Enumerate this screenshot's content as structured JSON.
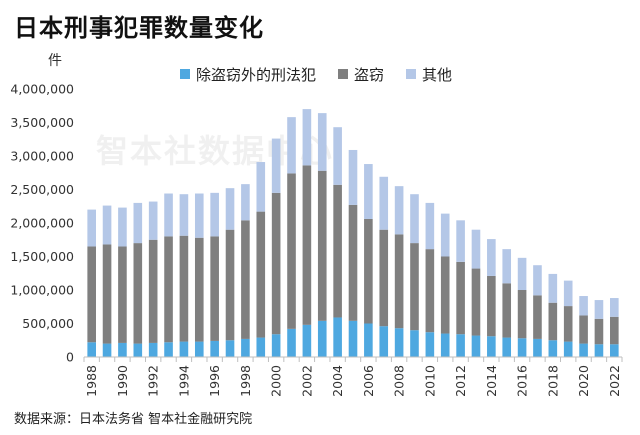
{
  "title": "日本刑事犯罪数量变化",
  "unit": "件",
  "source": "数据来源：日本法务省 智本社金融研究院",
  "watermark": "智本社数据中心",
  "colors": {
    "series1": "#4ea8e0",
    "series2": "#7f7f7f",
    "series3": "#b4c7e7",
    "axis": "#bfbfbf"
  },
  "chart_data": {
    "type": "bar",
    "stacked": true,
    "legend_position": "top",
    "grid": false,
    "x": [
      1988,
      1989,
      1990,
      1991,
      1992,
      1993,
      1994,
      1995,
      1996,
      1997,
      1998,
      1999,
      2000,
      2001,
      2002,
      2003,
      2004,
      2005,
      2006,
      2007,
      2008,
      2009,
      2010,
      2011,
      2012,
      2013,
      2014,
      2015,
      2016,
      2017,
      2018,
      2019,
      2020,
      2021,
      2022
    ],
    "x_tick_labels": [
      "1988",
      "1990",
      "1992",
      "1994",
      "1996",
      "1998",
      "2000",
      "2002",
      "2004",
      "2006",
      "2008",
      "2010",
      "2012",
      "2014",
      "2016",
      "2018",
      "2020",
      "2022"
    ],
    "ylim": [
      0,
      4000000
    ],
    "y_ticks": [
      "0",
      "500,000",
      "1,000,000",
      "1,500,000",
      "2,000,000",
      "2,500,000",
      "3,000,000",
      "3,500,000",
      "4,000,000"
    ],
    "series": [
      {
        "name": "除盗窃外的刑法犯",
        "values": [
          220000,
          200000,
          210000,
          200000,
          210000,
          220000,
          230000,
          230000,
          240000,
          250000,
          270000,
          290000,
          340000,
          420000,
          480000,
          540000,
          590000,
          540000,
          500000,
          460000,
          430000,
          400000,
          370000,
          350000,
          340000,
          320000,
          310000,
          290000,
          280000,
          270000,
          250000,
          230000,
          200000,
          190000,
          190000
        ]
      },
      {
        "name": "盗窃",
        "values": [
          1430000,
          1480000,
          1440000,
          1500000,
          1540000,
          1580000,
          1580000,
          1550000,
          1560000,
          1650000,
          1770000,
          1880000,
          2110000,
          2320000,
          2380000,
          2240000,
          1980000,
          1730000,
          1560000,
          1440000,
          1400000,
          1300000,
          1240000,
          1150000,
          1080000,
          1000000,
          900000,
          810000,
          720000,
          650000,
          560000,
          530000,
          420000,
          380000,
          410000
        ]
      },
      {
        "name": "其他",
        "values": [
          550000,
          580000,
          580000,
          600000,
          570000,
          640000,
          620000,
          660000,
          650000,
          620000,
          540000,
          740000,
          810000,
          840000,
          840000,
          860000,
          860000,
          820000,
          820000,
          790000,
          720000,
          730000,
          690000,
          640000,
          620000,
          580000,
          550000,
          510000,
          480000,
          450000,
          430000,
          380000,
          290000,
          280000,
          280000
        ]
      }
    ]
  }
}
